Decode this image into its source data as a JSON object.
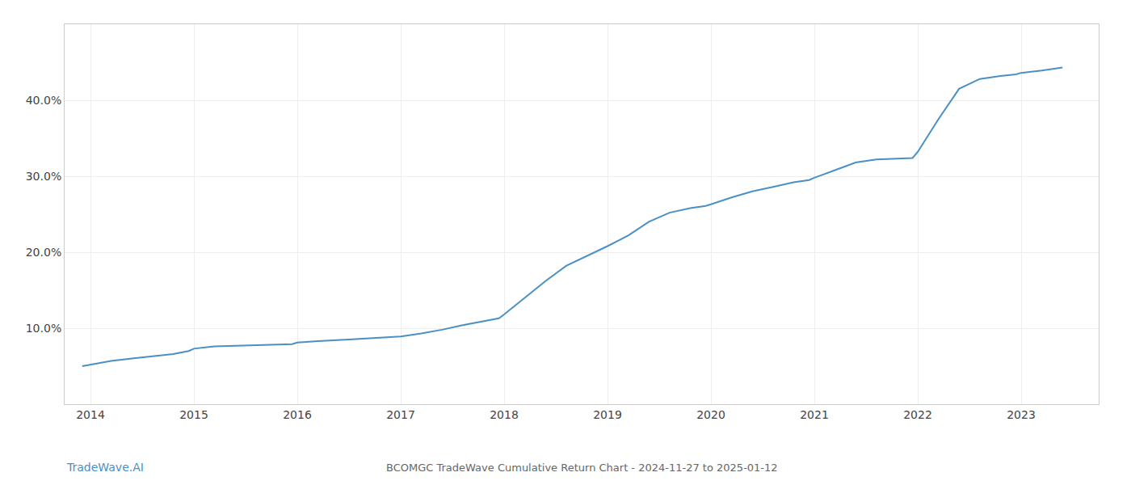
{
  "chart_data": {
    "type": "line",
    "title": "BCOMGC TradeWave Cumulative Return Chart - 2024-11-27 to 2025-01-12",
    "annotations": [
      "TradeWave.AI"
    ],
    "color": "#4a90c4",
    "x": [
      2013.92,
      2014.0,
      2014.1,
      2014.2,
      2014.4,
      2014.6,
      2014.8,
      2014.95,
      2015.0,
      2015.2,
      2015.5,
      2015.8,
      2015.95,
      2016.0,
      2016.2,
      2016.5,
      2016.8,
      2016.95,
      2017.0,
      2017.2,
      2017.4,
      2017.6,
      2017.8,
      2017.95,
      2018.0,
      2018.2,
      2018.4,
      2018.6,
      2018.8,
      2018.95,
      2019.0,
      2019.2,
      2019.4,
      2019.6,
      2019.8,
      2019.95,
      2020.0,
      2020.2,
      2020.4,
      2020.6,
      2020.8,
      2020.95,
      2021.0,
      2021.2,
      2021.4,
      2021.6,
      2021.8,
      2021.95,
      2022.0,
      2022.2,
      2022.4,
      2022.6,
      2022.8,
      2022.95,
      2023.0,
      2023.2,
      2023.4
    ],
    "values": [
      0.05,
      0.052,
      0.054,
      0.057,
      0.06,
      0.063,
      0.066,
      0.07,
      0.073,
      0.076,
      0.077,
      0.078,
      0.079,
      0.081,
      0.083,
      0.085,
      0.087,
      0.088,
      0.089,
      0.093,
      0.098,
      0.104,
      0.109,
      0.113,
      0.118,
      0.14,
      0.162,
      0.182,
      0.195,
      0.205,
      0.208,
      0.222,
      0.24,
      0.252,
      0.258,
      0.261,
      0.263,
      0.272,
      0.28,
      0.286,
      0.292,
      0.295,
      0.298,
      0.308,
      0.318,
      0.322,
      0.323,
      0.324,
      0.332,
      0.375,
      0.415,
      0.428,
      0.432,
      0.434,
      0.436,
      0.439,
      0.443
    ],
    "xlim": [
      2013.75,
      2023.75
    ],
    "ylim": [
      0.0,
      0.5
    ],
    "xticks": [
      2014,
      2015,
      2016,
      2017,
      2018,
      2019,
      2020,
      2021,
      2022,
      2023
    ],
    "yticks": [
      {
        "value": 0.1,
        "label": "10.0%"
      },
      {
        "value": 0.2,
        "label": "20.0%"
      },
      {
        "value": 0.3,
        "label": "30.0%"
      },
      {
        "value": 0.4,
        "label": "40.0%"
      }
    ],
    "grid": true
  }
}
